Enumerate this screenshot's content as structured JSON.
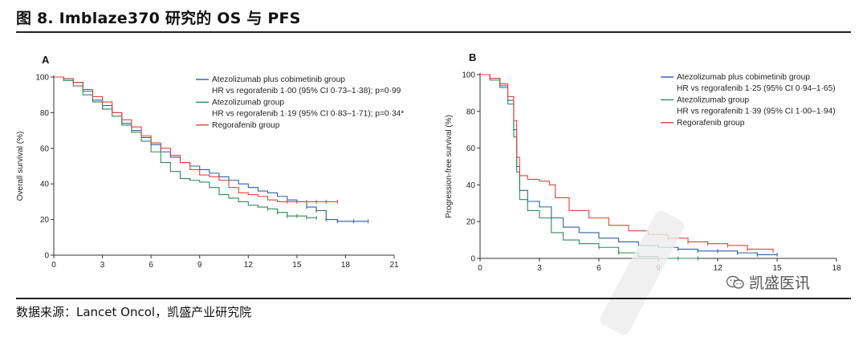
{
  "figure": {
    "title": "图 8. Imblaze370 研究的 OS 与 PFS",
    "source": "数据来源：Lancet Oncol，凯盛产业研究院",
    "watermark": "凯盛医讯"
  },
  "colors": {
    "atezo_cobi": "#2b5fa8",
    "atezo": "#2e8b57",
    "rego": "#e8403a",
    "axis": "#333333"
  },
  "chart_data": [
    {
      "type": "line",
      "panel_label": "A",
      "ylabel": "Overall survival (%)",
      "xlabel": "",
      "xlim": [
        0,
        21
      ],
      "ylim": [
        0,
        100
      ],
      "xticks": [
        0,
        3,
        6,
        9,
        12,
        15,
        18,
        21
      ],
      "yticks": [
        0,
        20,
        40,
        60,
        80,
        100
      ],
      "legend": {
        "lines": [
          {
            "text": "Atezolizumab plus cobimetinib group",
            "series": 0
          },
          {
            "text": "HR vs regorafenib 1·00 (95% CI 0·73–1·38); p=0·99",
            "series": null
          },
          {
            "text": "Atezolizumab group",
            "series": 1
          },
          {
            "text": "HR vs regorafenib 1·19 (95% CI 0·83–1·71); p=0·34*",
            "series": null
          },
          {
            "text": "Regorafenib group",
            "series": 2
          }
        ]
      },
      "series": [
        {
          "name": "Atezolizumab plus cobimetinib group",
          "color": "#2b5fa8",
          "x": [
            0,
            0.6,
            1.2,
            1.8,
            2.4,
            3,
            3.6,
            4.2,
            4.8,
            5.4,
            6,
            6.6,
            7.2,
            7.8,
            8.4,
            9,
            9.6,
            10.2,
            10.8,
            11.4,
            12,
            12.6,
            13.2,
            13.8,
            14.4,
            15,
            15.6,
            16.2,
            16.8,
            17.5,
            18.5,
            19.4
          ],
          "y": [
            100,
            99,
            97,
            92,
            87,
            84,
            80,
            74,
            70,
            66,
            62,
            58,
            55,
            52,
            50,
            48,
            46,
            44,
            42,
            40,
            38,
            36,
            35,
            33,
            31,
            30,
            27,
            25,
            20,
            19,
            19,
            19
          ]
        },
        {
          "name": "Atezolizumab group",
          "color": "#2e8b57",
          "x": [
            0,
            0.6,
            1.2,
            1.8,
            2.4,
            3,
            3.6,
            4.2,
            4.8,
            5.4,
            6,
            6.6,
            7.2,
            7.8,
            8.4,
            9,
            9.6,
            10.2,
            10.8,
            11.4,
            12,
            12.6,
            13.2,
            13.8,
            14.4,
            15,
            15.6,
            16.2
          ],
          "y": [
            100,
            98,
            95,
            90,
            86,
            82,
            78,
            73,
            69,
            64,
            58,
            52,
            47,
            43,
            42,
            41,
            38,
            34,
            32,
            30,
            28,
            27,
            26,
            24,
            22,
            22,
            21,
            21
          ]
        },
        {
          "name": "Regorafenib group",
          "color": "#e8403a",
          "x": [
            0,
            0.6,
            1.2,
            1.8,
            2.4,
            3,
            3.6,
            4.2,
            4.8,
            5.4,
            6,
            6.6,
            7.2,
            7.8,
            8.4,
            9,
            9.6,
            10.2,
            10.8,
            11.4,
            12,
            12.6,
            13.2,
            13.8,
            14.4,
            15,
            15.6,
            16.2,
            16.8,
            17.5
          ],
          "y": [
            100,
            99,
            97,
            93,
            89,
            86,
            80,
            76,
            72,
            67,
            63,
            60,
            56,
            52,
            48,
            45,
            44,
            42,
            38,
            35,
            34,
            33,
            31,
            30,
            30,
            30,
            30,
            30,
            30,
            30
          ]
        }
      ]
    },
    {
      "type": "line",
      "panel_label": "B",
      "ylabel": "Progression-free survival (%)",
      "xlabel": "",
      "xlim": [
        0,
        18
      ],
      "ylim": [
        0,
        100
      ],
      "xticks": [
        0,
        3,
        6,
        9,
        12,
        15,
        18
      ],
      "yticks": [
        0,
        20,
        40,
        60,
        80,
        100
      ],
      "legend": {
        "lines": [
          {
            "text": "Atezolizumab plus cobimetinib group",
            "series": 0
          },
          {
            "text": "HR vs regorafenib 1·25 (95% CI 0·94–1·65)",
            "series": null
          },
          {
            "text": "Atezolizumab group",
            "series": 1
          },
          {
            "text": "HR vs regorafenib 1·39 (95% CI 1·00–1·94)",
            "series": null
          },
          {
            "text": "Regorafenib group",
            "series": 2
          }
        ]
      },
      "series": [
        {
          "name": "Atezolizumab plus cobimetinib group",
          "color": "#2b5fa8",
          "x": [
            0,
            0.5,
            1.0,
            1.4,
            1.7,
            1.85,
            2.0,
            2.4,
            3.0,
            3.6,
            4.2,
            5.0,
            6.0,
            7.0,
            8.0,
            9.0,
            10.0,
            11.0,
            12.0,
            13.0,
            14.0,
            15.0
          ],
          "y": [
            100,
            98,
            94,
            86,
            70,
            50,
            37,
            31,
            28,
            22,
            17,
            14,
            11,
            9,
            7,
            6,
            5,
            4,
            4,
            3,
            2,
            2
          ]
        },
        {
          "name": "Atezolizumab group",
          "color": "#2e8b57",
          "x": [
            0,
            0.5,
            1.0,
            1.4,
            1.7,
            1.85,
            2.0,
            2.4,
            3.0,
            3.6,
            4.2,
            5.0,
            6.0,
            7.0,
            8.0,
            9.0,
            10.0,
            11.0
          ],
          "y": [
            100,
            97,
            93,
            84,
            66,
            47,
            32,
            26,
            22,
            14,
            10,
            8,
            6,
            3,
            1,
            0,
            0,
            0
          ]
        },
        {
          "name": "Regorafenib group",
          "color": "#e8403a",
          "x": [
            0,
            0.5,
            1.0,
            1.4,
            1.7,
            1.85,
            2.0,
            2.4,
            3.0,
            3.5,
            3.8,
            4.5,
            5.5,
            6.5,
            7.5,
            8.5,
            9.5,
            10.5,
            11.5,
            12.5,
            13.5,
            14.8
          ],
          "y": [
            100,
            98,
            95,
            88,
            75,
            55,
            45,
            43,
            42,
            40,
            33,
            26,
            22,
            18,
            15,
            13,
            11,
            9,
            8,
            7,
            5,
            4
          ]
        }
      ]
    }
  ]
}
